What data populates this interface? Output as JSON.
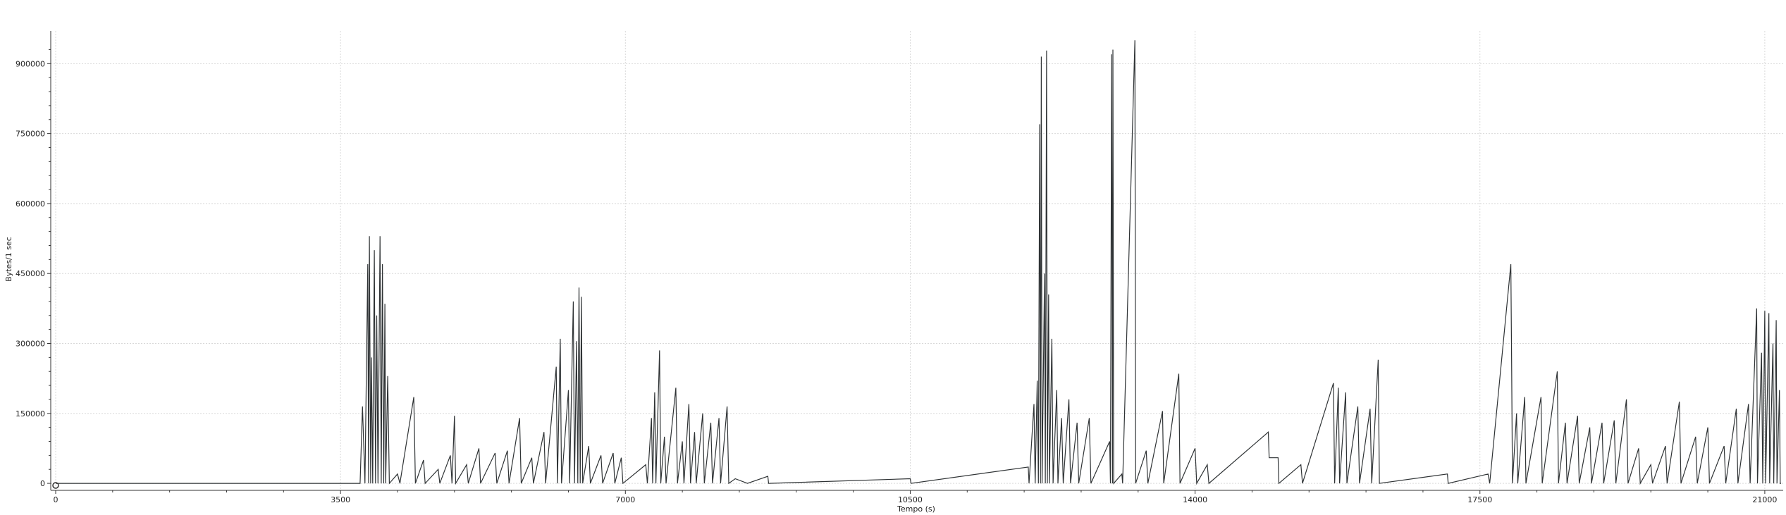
{
  "chart_data": {
    "type": "line",
    "title": "",
    "xlabel": "Tempo (s)",
    "ylabel": "Bytes/1 sec",
    "xlim": [
      0,
      21200
    ],
    "ylim": [
      -15000,
      970000
    ],
    "x_ticks": [
      0,
      3500,
      7000,
      10500,
      14000,
      17500,
      21000
    ],
    "x_tick_labels": [
      "0",
      "3500",
      "7000",
      "10500",
      "14000",
      "17500",
      "21000"
    ],
    "y_ticks": [
      0,
      150000,
      300000,
      450000,
      600000,
      750000,
      900000
    ],
    "y_tick_labels": [
      "0",
      "150000",
      "300000",
      "450000",
      "600000",
      "750000",
      "900000"
    ],
    "grid": true,
    "legend": "none",
    "colors": {
      "line": "#2f3335",
      "grid": "#d9d9d9",
      "axis": "#333333"
    },
    "series": [
      {
        "values": [
          [
            0,
            0
          ],
          [
            3740,
            0
          ],
          [
            3770,
            165000
          ],
          [
            3800,
            0
          ],
          [
            3835,
            470000
          ],
          [
            3845,
            0
          ],
          [
            3855,
            530000
          ],
          [
            3870,
            0
          ],
          [
            3880,
            270000
          ],
          [
            3895,
            0
          ],
          [
            3915,
            500000
          ],
          [
            3930,
            0
          ],
          [
            3945,
            360000
          ],
          [
            3960,
            0
          ],
          [
            3985,
            530000
          ],
          [
            4000,
            0
          ],
          [
            4015,
            470000
          ],
          [
            4030,
            0
          ],
          [
            4045,
            385000
          ],
          [
            4055,
            0
          ],
          [
            4080,
            230000
          ],
          [
            4100,
            0
          ],
          [
            4200,
            20000
          ],
          [
            4230,
            0
          ],
          [
            4400,
            185000
          ],
          [
            4420,
            0
          ],
          [
            4520,
            50000
          ],
          [
            4540,
            0
          ],
          [
            4700,
            30000
          ],
          [
            4720,
            0
          ],
          [
            4850,
            60000
          ],
          [
            4870,
            0
          ],
          [
            4900,
            145000
          ],
          [
            4915,
            0
          ],
          [
            5050,
            40000
          ],
          [
            5070,
            0
          ],
          [
            5200,
            75000
          ],
          [
            5220,
            0
          ],
          [
            5400,
            65000
          ],
          [
            5420,
            0
          ],
          [
            5550,
            70000
          ],
          [
            5570,
            0
          ],
          [
            5700,
            140000
          ],
          [
            5720,
            0
          ],
          [
            5850,
            55000
          ],
          [
            5870,
            0
          ],
          [
            6000,
            110000
          ],
          [
            6020,
            0
          ],
          [
            6150,
            250000
          ],
          [
            6165,
            0
          ],
          [
            6200,
            310000
          ],
          [
            6215,
            0
          ],
          [
            6300,
            200000
          ],
          [
            6315,
            0
          ],
          [
            6360,
            390000
          ],
          [
            6375,
            0
          ],
          [
            6400,
            305000
          ],
          [
            6415,
            0
          ],
          [
            6430,
            420000
          ],
          [
            6445,
            0
          ],
          [
            6460,
            400000
          ],
          [
            6475,
            0
          ],
          [
            6550,
            80000
          ],
          [
            6570,
            0
          ],
          [
            6700,
            60000
          ],
          [
            6720,
            0
          ],
          [
            6850,
            65000
          ],
          [
            6870,
            0
          ],
          [
            6950,
            55000
          ],
          [
            6970,
            0
          ],
          [
            7250,
            40000
          ],
          [
            7270,
            0
          ],
          [
            7320,
            140000
          ],
          [
            7335,
            0
          ],
          [
            7360,
            195000
          ],
          [
            7375,
            0
          ],
          [
            7420,
            285000
          ],
          [
            7435,
            0
          ],
          [
            7480,
            100000
          ],
          [
            7500,
            0
          ],
          [
            7620,
            205000
          ],
          [
            7640,
            0
          ],
          [
            7700,
            90000
          ],
          [
            7720,
            0
          ],
          [
            7780,
            170000
          ],
          [
            7800,
            0
          ],
          [
            7850,
            110000
          ],
          [
            7870,
            0
          ],
          [
            7950,
            150000
          ],
          [
            7970,
            0
          ],
          [
            8050,
            130000
          ],
          [
            8070,
            0
          ],
          [
            8150,
            140000
          ],
          [
            8170,
            0
          ],
          [
            8250,
            165000
          ],
          [
            8270,
            0
          ],
          [
            8350,
            10000
          ],
          [
            8500,
            0
          ],
          [
            8750,
            15000
          ],
          [
            8760,
            0
          ],
          [
            10500,
            10000
          ],
          [
            10510,
            0
          ],
          [
            11950,
            35000
          ],
          [
            11960,
            0
          ],
          [
            12020,
            170000
          ],
          [
            12035,
            0
          ],
          [
            12060,
            220000
          ],
          [
            12075,
            0
          ],
          [
            12090,
            770000
          ],
          [
            12100,
            0
          ],
          [
            12110,
            915000
          ],
          [
            12120,
            0
          ],
          [
            12150,
            450000
          ],
          [
            12160,
            0
          ],
          [
            12175,
            928000
          ],
          [
            12185,
            0
          ],
          [
            12200,
            405000
          ],
          [
            12210,
            0
          ],
          [
            12240,
            310000
          ],
          [
            12255,
            0
          ],
          [
            12300,
            200000
          ],
          [
            12315,
            0
          ],
          [
            12360,
            140000
          ],
          [
            12380,
            0
          ],
          [
            12450,
            180000
          ],
          [
            12470,
            0
          ],
          [
            12550,
            130000
          ],
          [
            12570,
            0
          ],
          [
            12700,
            140000
          ],
          [
            12720,
            0
          ],
          [
            12950,
            90000
          ],
          [
            12960,
            0
          ],
          [
            12975,
            920000
          ],
          [
            12985,
            0
          ],
          [
            12990,
            930000
          ],
          [
            13000,
            0
          ],
          [
            13100,
            20000
          ],
          [
            13110,
            0
          ],
          [
            13260,
            950000
          ],
          [
            13270,
            0
          ],
          [
            13400,
            70000
          ],
          [
            13420,
            0
          ],
          [
            13600,
            155000
          ],
          [
            13615,
            0
          ],
          [
            13800,
            235000
          ],
          [
            13815,
            0
          ],
          [
            14000,
            75000
          ],
          [
            14020,
            0
          ],
          [
            14150,
            40000
          ],
          [
            14170,
            0
          ],
          [
            14900,
            110000
          ],
          [
            14910,
            55000
          ],
          [
            15020,
            55000
          ],
          [
            15030,
            0
          ],
          [
            15300,
            40000
          ],
          [
            15320,
            0
          ],
          [
            15700,
            215000
          ],
          [
            15715,
            0
          ],
          [
            15760,
            205000
          ],
          [
            15775,
            0
          ],
          [
            15850,
            195000
          ],
          [
            15865,
            0
          ],
          [
            16000,
            165000
          ],
          [
            16020,
            0
          ],
          [
            16150,
            160000
          ],
          [
            16170,
            0
          ],
          [
            16250,
            265000
          ],
          [
            16265,
            0
          ],
          [
            17100,
            20000
          ],
          [
            17110,
            0
          ],
          [
            17600,
            20000
          ],
          [
            17620,
            0
          ],
          [
            17880,
            470000
          ],
          [
            17890,
            240000
          ],
          [
            17900,
            0
          ],
          [
            17950,
            150000
          ],
          [
            17965,
            0
          ],
          [
            18050,
            185000
          ],
          [
            18065,
            0
          ],
          [
            18250,
            185000
          ],
          [
            18265,
            0
          ],
          [
            18450,
            240000
          ],
          [
            18465,
            0
          ],
          [
            18550,
            130000
          ],
          [
            18570,
            0
          ],
          [
            18700,
            145000
          ],
          [
            18720,
            0
          ],
          [
            18850,
            120000
          ],
          [
            18870,
            0
          ],
          [
            19000,
            130000
          ],
          [
            19020,
            0
          ],
          [
            19150,
            135000
          ],
          [
            19170,
            0
          ],
          [
            19300,
            180000
          ],
          [
            19320,
            0
          ],
          [
            19450,
            75000
          ],
          [
            19470,
            0
          ],
          [
            19600,
            40000
          ],
          [
            19620,
            0
          ],
          [
            19780,
            80000
          ],
          [
            19800,
            0
          ],
          [
            19950,
            175000
          ],
          [
            19970,
            0
          ],
          [
            20150,
            100000
          ],
          [
            20170,
            0
          ],
          [
            20300,
            120000
          ],
          [
            20320,
            0
          ],
          [
            20500,
            80000
          ],
          [
            20520,
            0
          ],
          [
            20650,
            160000
          ],
          [
            20670,
            0
          ],
          [
            20800,
            170000
          ],
          [
            20820,
            0
          ],
          [
            20900,
            375000
          ],
          [
            20910,
            0
          ],
          [
            20960,
            280000
          ],
          [
            20975,
            0
          ],
          [
            21000,
            370000
          ],
          [
            21010,
            0
          ],
          [
            21050,
            365000
          ],
          [
            21060,
            0
          ],
          [
            21100,
            300000
          ],
          [
            21110,
            0
          ],
          [
            21140,
            350000
          ],
          [
            21150,
            0
          ],
          [
            21180,
            200000
          ],
          [
            21190,
            0
          ],
          [
            21200,
            0
          ]
        ]
      }
    ]
  }
}
